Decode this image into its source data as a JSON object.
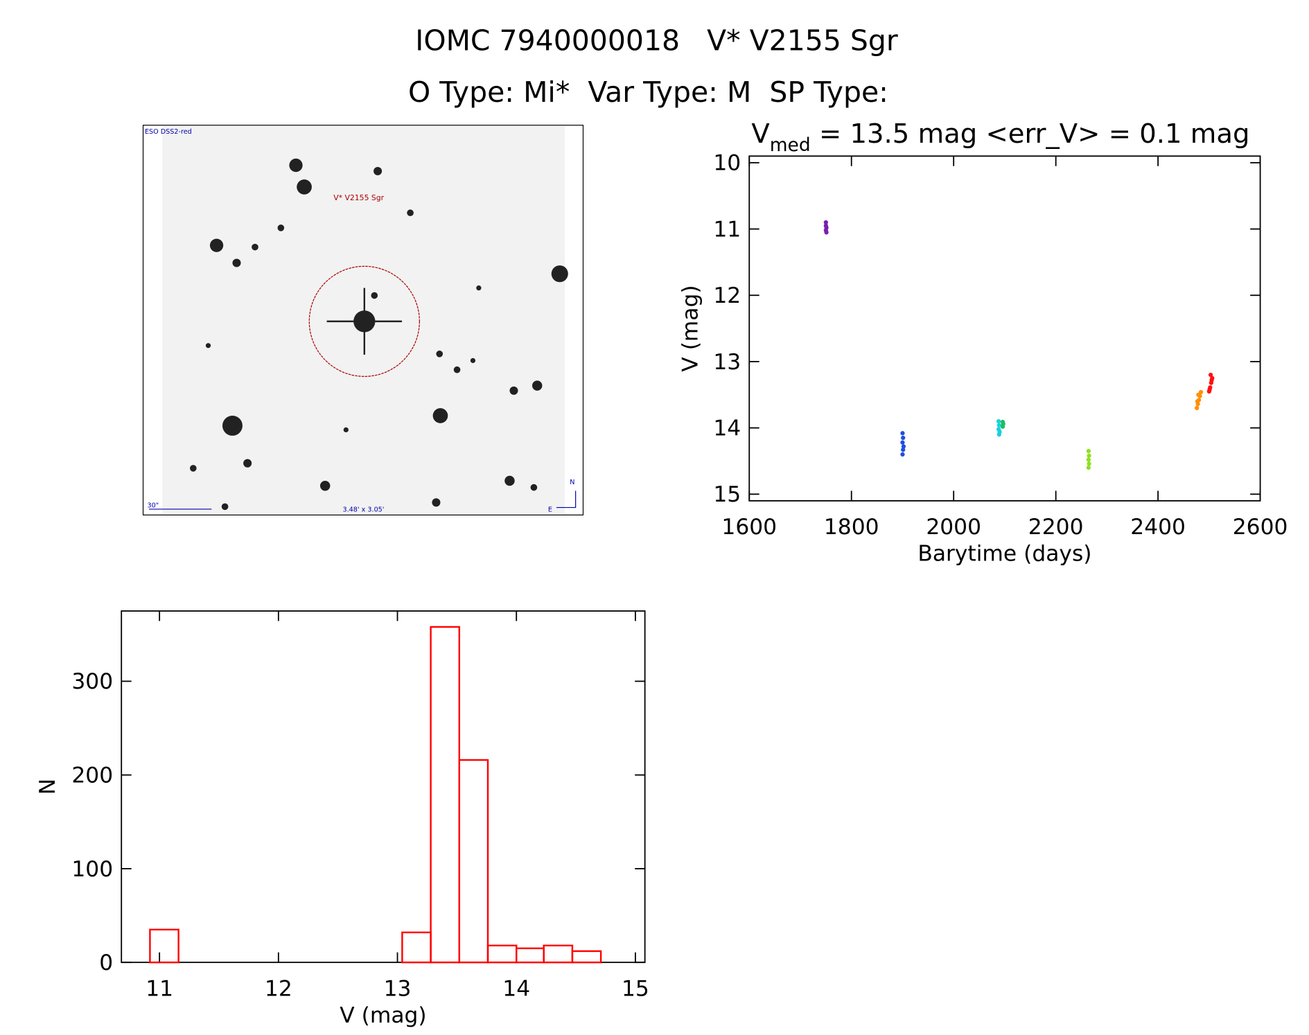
{
  "header": {
    "title": "IOMC 7940000018   V* V2155 Sgr",
    "subtitle": "O Type: Mi*  Var Type: M  SP Type:"
  },
  "image": {
    "survey": "ESO DSS2-red",
    "target": "V* V2155 Sgr",
    "scale": "30\"",
    "size": "3.48' x 3.05'",
    "north": "N",
    "east": "E"
  },
  "chart_data": [
    {
      "type": "scatter",
      "title": {
        "main": "V",
        "subscript": "med",
        "rest": " = 13.5 mag <err_V> = 0.1 mag"
      },
      "x_label": "Barytime (days)",
      "y_label": "V (mag)",
      "xlim": [
        1600,
        2600
      ],
      "xticks": [
        1600,
        1800,
        2000,
        2200,
        2400,
        2600
      ],
      "ylim": [
        9.9,
        15.1
      ],
      "yticks": [
        10,
        11,
        12,
        13,
        14,
        15
      ],
      "y_inverted": true,
      "series": [
        {
          "color": "#7a1fb0",
          "x": [
            1750,
            1750,
            1751,
            1750,
            1751
          ],
          "values": [
            10.9,
            10.95,
            10.98,
            11.02,
            11.05
          ]
        },
        {
          "color": "#1f4fe0",
          "x": [
            1900,
            1901,
            1900,
            1902,
            1901,
            1900
          ],
          "values": [
            14.08,
            14.15,
            14.22,
            14.28,
            14.33,
            14.4
          ]
        },
        {
          "color": "#19d0e0",
          "x": [
            2088,
            2089,
            2088,
            2090,
            2089
          ],
          "values": [
            13.9,
            13.96,
            14.02,
            14.06,
            14.1
          ]
        },
        {
          "color": "#19c060",
          "x": [
            2096,
            2097,
            2096
          ],
          "values": [
            13.91,
            13.94,
            13.98
          ]
        },
        {
          "color": "#90e020",
          "x": [
            2264,
            2265,
            2264,
            2265,
            2264
          ],
          "values": [
            14.35,
            14.42,
            14.48,
            14.54,
            14.6
          ]
        },
        {
          "color": "#ff9000",
          "x": [
            2476,
            2478,
            2480,
            2482,
            2484,
            2479,
            2477
          ],
          "values": [
            13.7,
            13.64,
            13.58,
            13.52,
            13.46,
            13.5,
            13.6
          ]
        },
        {
          "color": "#ff1010",
          "x": [
            2500,
            2502,
            2504,
            2506,
            2503,
            2501,
            2505
          ],
          "values": [
            13.45,
            13.39,
            13.32,
            13.25,
            13.2,
            13.42,
            13.28
          ]
        }
      ]
    },
    {
      "type": "histogram",
      "x_label": "V (mag)",
      "y_label": "N",
      "color": "#ff0000",
      "xlim": [
        10.68,
        15.08
      ],
      "xticks": [
        11,
        12,
        13,
        14,
        15
      ],
      "ylim": [
        0,
        375
      ],
      "yticks": [
        0,
        100,
        200,
        300
      ],
      "bins": [
        10.92,
        11.16,
        11.39,
        11.63,
        11.86,
        12.1,
        12.34,
        12.57,
        12.81,
        13.04,
        13.28,
        13.52,
        13.76,
        14.0,
        14.23,
        14.47,
        14.71
      ],
      "values": [
        35,
        0,
        0,
        0,
        0,
        0,
        0,
        0,
        0,
        32,
        358,
        216,
        18,
        15,
        18,
        12
      ]
    }
  ]
}
